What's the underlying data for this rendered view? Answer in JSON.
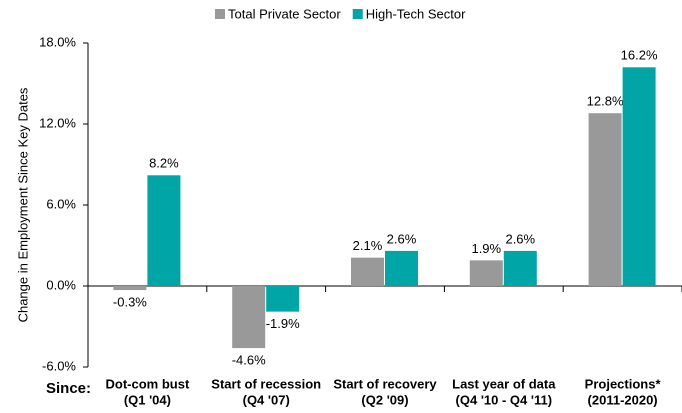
{
  "chart_data": {
    "type": "bar",
    "ylabel": "Change in Employment Since Key Dates",
    "xlabel": "Since:",
    "categories": [
      [
        "Dot-com bust",
        "(Q1 '04)"
      ],
      [
        "Start of recession",
        "(Q4 '07)"
      ],
      [
        "Start of recovery",
        "(Q2 '09)"
      ],
      [
        "Last year of data",
        "(Q4 '10 - Q4 '11)"
      ],
      [
        "Projections*",
        "(2011-2020)"
      ]
    ],
    "series": [
      {
        "name": "Total Private Sector",
        "color": "#999999",
        "values": [
          -0.3,
          -4.6,
          2.1,
          1.9,
          12.8
        ],
        "value_labels": [
          "-0.3%",
          "-4.6%",
          "2.1%",
          "1.9%",
          "12.8%"
        ]
      },
      {
        "name": "High-Tech Sector",
        "color": "#00a6a6",
        "values": [
          8.2,
          -1.9,
          2.6,
          2.6,
          16.2
        ],
        "value_labels": [
          "8.2%",
          "-1.9%",
          "2.6%",
          "2.6%",
          "16.2%"
        ]
      }
    ],
    "ylim": [
      -6,
      18
    ],
    "yticks": [
      {
        "value": -6,
        "label": "-6.0%"
      },
      {
        "value": 0,
        "label": "0.0%"
      },
      {
        "value": 6,
        "label": "6.0%"
      },
      {
        "value": 12,
        "label": "12.0%"
      },
      {
        "value": 18,
        "label": "18.0%"
      }
    ],
    "grid": false,
    "legend": "top"
  }
}
